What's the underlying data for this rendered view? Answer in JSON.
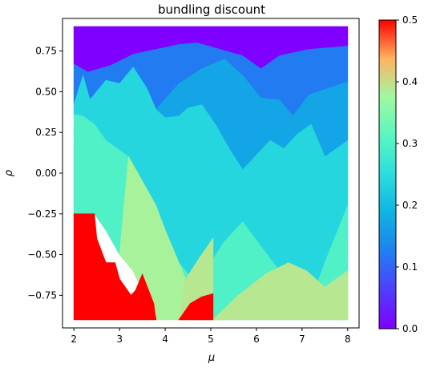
{
  "chart_data": {
    "type": "heatmap",
    "title": "bundling discount",
    "xlabel": "μ",
    "ylabel": "ρ",
    "xlim": [
      1.75,
      8.25
    ],
    "ylim": [
      -0.95,
      0.95
    ],
    "xticks": [
      2,
      3,
      4,
      5,
      6,
      7,
      8
    ],
    "xtick_labels": [
      "2",
      "3",
      "4",
      "5",
      "6",
      "7",
      "8"
    ],
    "yticks": [
      -0.75,
      -0.5,
      -0.25,
      0.0,
      0.25,
      0.5,
      0.75
    ],
    "ytick_labels": [
      "−0.75",
      "−0.50",
      "−0.25",
      "0.00",
      "0.25",
      "0.50",
      "0.75"
    ],
    "colorbar": {
      "colormap": "rainbow",
      "range": [
        0.0,
        0.5
      ],
      "ticks": [
        0.0,
        0.1,
        0.2,
        0.3,
        0.4,
        0.5
      ],
      "tick_labels": [
        "0.0",
        "0.1",
        "0.2",
        "0.3",
        "0.4",
        "0.5"
      ]
    },
    "grid": false,
    "regions": [
      {
        "value": 0.0,
        "polygon": [
          [
            2.0,
            0.9
          ],
          [
            8.0,
            0.9
          ],
          [
            8.0,
            0.78
          ],
          [
            7.15,
            0.76
          ],
          [
            6.5,
            0.72
          ],
          [
            6.1,
            0.64
          ],
          [
            5.7,
            0.72
          ],
          [
            5.2,
            0.76
          ],
          [
            4.7,
            0.8
          ],
          [
            4.3,
            0.79
          ],
          [
            3.8,
            0.76
          ],
          [
            3.3,
            0.73
          ],
          [
            2.8,
            0.66
          ],
          [
            2.3,
            0.62
          ],
          [
            2.0,
            0.67
          ]
        ]
      },
      {
        "value": 0.12,
        "polygon": [
          [
            2.0,
            0.67
          ],
          [
            2.3,
            0.62
          ],
          [
            2.8,
            0.66
          ],
          [
            3.3,
            0.73
          ],
          [
            3.8,
            0.76
          ],
          [
            4.3,
            0.79
          ],
          [
            4.7,
            0.8
          ],
          [
            5.2,
            0.76
          ],
          [
            5.7,
            0.72
          ],
          [
            6.1,
            0.64
          ],
          [
            6.5,
            0.72
          ],
          [
            7.15,
            0.76
          ],
          [
            8.0,
            0.78
          ],
          [
            8.0,
            0.56
          ],
          [
            7.15,
            0.48
          ],
          [
            6.8,
            0.35
          ],
          [
            6.5,
            0.45
          ],
          [
            6.1,
            0.46
          ],
          [
            5.7,
            0.58
          ],
          [
            5.4,
            0.63
          ],
          [
            4.8,
            0.64
          ],
          [
            4.3,
            0.55
          ],
          [
            3.8,
            0.39
          ],
          [
            3.6,
            0.52
          ],
          [
            3.3,
            0.65
          ],
          [
            3.0,
            0.55
          ],
          [
            2.7,
            0.57
          ],
          [
            2.35,
            0.45
          ],
          [
            2.2,
            0.6
          ],
          [
            2.0,
            0.42
          ]
        ]
      },
      {
        "value": 0.17,
        "polygon": [
          [
            3.8,
            0.39
          ],
          [
            4.3,
            0.55
          ],
          [
            4.8,
            0.64
          ],
          [
            5.3,
            0.7
          ],
          [
            5.7,
            0.6
          ],
          [
            6.1,
            0.46
          ],
          [
            6.5,
            0.45
          ],
          [
            6.8,
            0.35
          ],
          [
            7.15,
            0.48
          ],
          [
            8.0,
            0.56
          ],
          [
            8.0,
            0.2
          ],
          [
            7.5,
            0.1
          ],
          [
            7.2,
            0.3
          ],
          [
            6.9,
            0.24
          ],
          [
            6.6,
            0.15
          ],
          [
            6.3,
            0.2
          ],
          [
            5.7,
            0.02
          ],
          [
            5.4,
            0.15
          ],
          [
            5.1,
            0.3
          ],
          [
            4.8,
            0.42
          ],
          [
            4.5,
            0.4
          ],
          [
            4.3,
            0.35
          ],
          [
            4.0,
            0.34
          ]
        ]
      },
      {
        "value": 0.24,
        "polygon": [
          [
            2.0,
            0.42
          ],
          [
            2.2,
            0.6
          ],
          [
            2.35,
            0.45
          ],
          [
            2.7,
            0.57
          ],
          [
            3.0,
            0.55
          ],
          [
            3.3,
            0.65
          ],
          [
            3.6,
            0.52
          ],
          [
            3.8,
            0.39
          ],
          [
            4.0,
            0.34
          ],
          [
            4.3,
            0.35
          ],
          [
            4.5,
            0.4
          ],
          [
            4.8,
            0.42
          ],
          [
            5.1,
            0.3
          ],
          [
            5.4,
            0.15
          ],
          [
            5.7,
            0.02
          ],
          [
            6.3,
            0.2
          ],
          [
            6.6,
            0.15
          ],
          [
            6.9,
            0.24
          ],
          [
            7.2,
            0.3
          ],
          [
            7.5,
            0.1
          ],
          [
            8.0,
            0.2
          ],
          [
            8.0,
            -0.2
          ],
          [
            7.5,
            -0.55
          ],
          [
            7.2,
            -0.78
          ],
          [
            6.9,
            -0.7
          ],
          [
            6.5,
            -0.6
          ],
          [
            6.1,
            -0.45
          ],
          [
            5.7,
            -0.3
          ],
          [
            5.3,
            -0.42
          ],
          [
            5.0,
            -0.55
          ],
          [
            4.6,
            -0.65
          ],
          [
            4.3,
            -0.55
          ],
          [
            4.0,
            -0.35
          ],
          [
            3.8,
            -0.2
          ],
          [
            3.5,
            -0.05
          ],
          [
            3.2,
            0.1
          ],
          [
            2.95,
            0.15
          ],
          [
            2.7,
            0.2
          ],
          [
            2.45,
            0.3
          ],
          [
            2.2,
            0.35
          ],
          [
            2.0,
            0.36
          ]
        ]
      },
      {
        "value": 0.3,
        "polygon": [
          [
            2.0,
            0.36
          ],
          [
            2.2,
            0.35
          ],
          [
            2.45,
            0.3
          ],
          [
            2.7,
            0.2
          ],
          [
            2.95,
            0.15
          ],
          [
            3.2,
            0.1
          ],
          [
            3.5,
            -0.05
          ],
          [
            3.8,
            -0.2
          ],
          [
            3.8,
            -0.85
          ],
          [
            3.5,
            -0.72
          ],
          [
            3.3,
            -0.6
          ],
          [
            3.0,
            -0.5
          ],
          [
            2.7,
            -0.35
          ],
          [
            2.45,
            -0.25
          ],
          [
            2.0,
            -0.25
          ]
        ]
      },
      {
        "value": 0.3,
        "polygon": [
          [
            4.3,
            -0.55
          ],
          [
            4.6,
            -0.65
          ],
          [
            5.0,
            -0.55
          ],
          [
            5.3,
            -0.42
          ],
          [
            5.7,
            -0.3
          ],
          [
            6.1,
            -0.45
          ],
          [
            6.5,
            -0.6
          ],
          [
            6.9,
            -0.7
          ],
          [
            7.2,
            -0.78
          ],
          [
            7.5,
            -0.55
          ],
          [
            8.0,
            -0.2
          ],
          [
            8.0,
            -0.9
          ],
          [
            4.3,
            -0.9
          ]
        ]
      },
      {
        "value": 0.38,
        "polygon": [
          [
            3.2,
            0.1
          ],
          [
            3.5,
            -0.05
          ],
          [
            3.8,
            -0.2
          ],
          [
            4.0,
            -0.35
          ],
          [
            4.3,
            -0.55
          ],
          [
            4.45,
            -0.65
          ],
          [
            4.3,
            -0.9
          ],
          [
            3.8,
            -0.9
          ],
          [
            3.8,
            -0.85
          ],
          [
            3.5,
            -0.72
          ],
          [
            3.3,
            -0.6
          ],
          [
            3.0,
            -0.5
          ]
        ]
      },
      {
        "value": 0.39,
        "polygon": [
          [
            4.45,
            -0.65
          ],
          [
            4.8,
            -0.5
          ],
          [
            5.05,
            -0.4
          ],
          [
            5.05,
            -0.9
          ],
          [
            4.3,
            -0.9
          ]
        ]
      },
      {
        "value": 0.39,
        "polygon": [
          [
            5.05,
            -0.9
          ],
          [
            5.6,
            -0.75
          ],
          [
            6.2,
            -0.62
          ],
          [
            6.7,
            -0.55
          ],
          [
            7.1,
            -0.6
          ],
          [
            7.5,
            -0.7
          ],
          [
            8.0,
            -0.6
          ],
          [
            8.0,
            -0.9
          ]
        ]
      },
      {
        "value": 0.5,
        "polygon": [
          [
            2.0,
            -0.25
          ],
          [
            2.45,
            -0.25
          ],
          [
            2.5,
            -0.4
          ],
          [
            2.7,
            -0.55
          ],
          [
            2.9,
            -0.55
          ],
          [
            3.0,
            -0.65
          ],
          [
            3.25,
            -0.75
          ],
          [
            3.35,
            -0.72
          ],
          [
            3.5,
            -0.62
          ],
          [
            3.75,
            -0.8
          ],
          [
            3.8,
            -0.9
          ],
          [
            2.0,
            -0.9
          ]
        ]
      },
      {
        "value": 0.5,
        "polygon": [
          [
            4.3,
            -0.9
          ],
          [
            4.55,
            -0.8
          ],
          [
            4.8,
            -0.76
          ],
          [
            5.05,
            -0.74
          ],
          [
            5.05,
            -0.9
          ]
        ]
      }
    ]
  }
}
